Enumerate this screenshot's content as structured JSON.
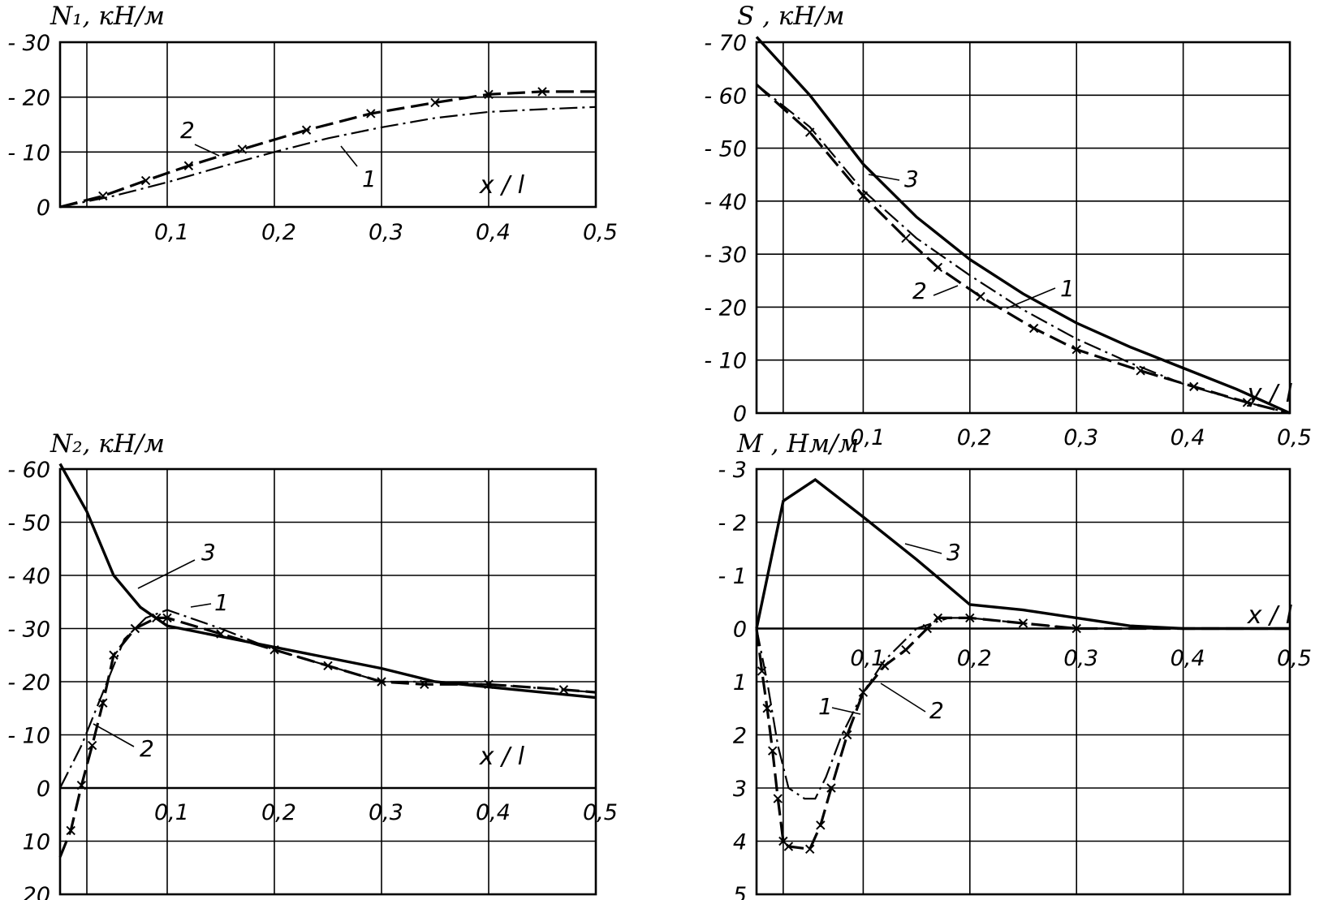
{
  "chart_data": [
    {
      "id": "n1",
      "type": "line",
      "title": "N₁, кН/м",
      "xlabel": "x / l",
      "xlim": [
        0,
        0.5
      ],
      "ylim": [
        0,
        -30
      ],
      "x_ticks": [
        "0,1",
        "0,2",
        "0,3",
        "0,4",
        "0,5"
      ],
      "y_ticks": [
        "0",
        "- 10",
        "- 20",
        "- 30"
      ],
      "series": [
        {
          "name": "1",
          "style": "dash-dot",
          "points": [
            [
              0,
              0
            ],
            [
              0.05,
              -2
            ],
            [
              0.1,
              -4.5
            ],
            [
              0.15,
              -7.3
            ],
            [
              0.2,
              -10
            ],
            [
              0.25,
              -12.5
            ],
            [
              0.3,
              -14.5
            ],
            [
              0.35,
              -16.2
            ],
            [
              0.4,
              -17.3
            ],
            [
              0.45,
              -17.8
            ],
            [
              0.5,
              -18.2
            ]
          ]
        },
        {
          "name": "2",
          "style": "dash-cross",
          "points": [
            [
              0,
              0
            ],
            [
              0.04,
              -2
            ],
            [
              0.08,
              -4.8
            ],
            [
              0.12,
              -7.5
            ],
            [
              0.17,
              -10.5
            ],
            [
              0.23,
              -14
            ],
            [
              0.29,
              -17
            ],
            [
              0.35,
              -19
            ],
            [
              0.4,
              -20.5
            ],
            [
              0.45,
              -21
            ],
            [
              0.5,
              -21
            ]
          ]
        }
      ],
      "curve_labels": [
        "1",
        "2"
      ]
    },
    {
      "id": "s",
      "type": "line",
      "title": "S , кН/м",
      "xlabel": "y / l",
      "xlim": [
        0,
        0.5
      ],
      "ylim": [
        0,
        -70
      ],
      "x_ticks": [
        "0,1",
        "0,2",
        "0,3",
        "0,4",
        "0,5"
      ],
      "y_ticks": [
        "0",
        "- 10",
        "- 20",
        "- 30",
        "- 40",
        "- 50",
        "- 60",
        "- 70"
      ],
      "series": [
        {
          "name": "1",
          "style": "dash-dot",
          "points": [
            [
              0,
              -62
            ],
            [
              0.05,
              -54
            ],
            [
              0.1,
              -42
            ],
            [
              0.15,
              -33
            ],
            [
              0.2,
              -26
            ],
            [
              0.25,
              -19.5
            ],
            [
              0.3,
              -14
            ],
            [
              0.35,
              -9.5
            ],
            [
              0.4,
              -5.5
            ],
            [
              0.45,
              -2.5
            ],
            [
              0.5,
              0
            ]
          ]
        },
        {
          "name": "2",
          "style": "dash-cross",
          "points": [
            [
              0,
              -62
            ],
            [
              0.05,
              -53
            ],
            [
              0.1,
              -41
            ],
            [
              0.14,
              -33
            ],
            [
              0.17,
              -27.5
            ],
            [
              0.21,
              -22
            ],
            [
              0.26,
              -16
            ],
            [
              0.3,
              -12
            ],
            [
              0.36,
              -8
            ],
            [
              0.41,
              -5
            ],
            [
              0.46,
              -2
            ],
            [
              0.5,
              0
            ]
          ]
        },
        {
          "name": "3",
          "style": "solid",
          "points": [
            [
              0,
              -71
            ],
            [
              0.05,
              -60
            ],
            [
              0.1,
              -47
            ],
            [
              0.15,
              -37
            ],
            [
              0.2,
              -29
            ],
            [
              0.25,
              -22.5
            ],
            [
              0.3,
              -17
            ],
            [
              0.35,
              -12.5
            ],
            [
              0.4,
              -8.5
            ],
            [
              0.45,
              -4.5
            ],
            [
              0.5,
              0
            ]
          ]
        }
      ],
      "curve_labels": [
        "1",
        "2",
        "3"
      ]
    },
    {
      "id": "n2",
      "type": "line",
      "title": "N₂, кН/м",
      "xlabel": "x / l",
      "xlim": [
        0,
        0.5
      ],
      "ylim": [
        20,
        -60
      ],
      "x_ticks": [
        "0,1",
        "0,2",
        "0,3",
        "0,4",
        "0,5"
      ],
      "y_ticks": [
        "20",
        "10",
        "0",
        "- 10",
        "- 20",
        "- 30",
        "- 40",
        "- 50",
        "- 60"
      ],
      "series": [
        {
          "name": "1",
          "style": "dash-dot",
          "points": [
            [
              0,
              0
            ],
            [
              0.02,
              -8
            ],
            [
              0.04,
              -18
            ],
            [
              0.06,
              -28
            ],
            [
              0.08,
              -32
            ],
            [
              0.1,
              -33.5
            ],
            [
              0.15,
              -30
            ],
            [
              0.2,
              -26
            ],
            [
              0.25,
              -23
            ],
            [
              0.3,
              -20
            ],
            [
              0.35,
              -20
            ],
            [
              0.4,
              -19.5
            ],
            [
              0.5,
              -18
            ]
          ]
        },
        {
          "name": "2",
          "style": "dash-cross",
          "points": [
            [
              0,
              13
            ],
            [
              0.01,
              8
            ],
            [
              0.02,
              -0.5
            ],
            [
              0.03,
              -8
            ],
            [
              0.04,
              -16
            ],
            [
              0.05,
              -25
            ],
            [
              0.07,
              -30
            ],
            [
              0.09,
              -32
            ],
            [
              0.1,
              -32
            ],
            [
              0.15,
              -29
            ],
            [
              0.2,
              -26
            ],
            [
              0.25,
              -23
            ],
            [
              0.3,
              -20
            ],
            [
              0.34,
              -19.5
            ],
            [
              0.4,
              -19.5
            ],
            [
              0.47,
              -18.5
            ],
            [
              0.5,
              -18
            ]
          ]
        },
        {
          "name": "3",
          "style": "solid",
          "points": [
            [
              0,
              -61
            ],
            [
              0.025,
              -52
            ],
            [
              0.05,
              -40
            ],
            [
              0.075,
              -34
            ],
            [
              0.1,
              -30.5
            ],
            [
              0.15,
              -28.5
            ],
            [
              0.2,
              -26.5
            ],
            [
              0.25,
              -24.5
            ],
            [
              0.3,
              -22.5
            ],
            [
              0.35,
              -20
            ],
            [
              0.4,
              -19
            ],
            [
              0.45,
              -18
            ],
            [
              0.5,
              -17
            ]
          ]
        }
      ],
      "curve_labels": [
        "1",
        "2",
        "3"
      ]
    },
    {
      "id": "m",
      "type": "line",
      "title": "M , Нм/м",
      "xlabel": "x / l",
      "xlim": [
        0,
        0.5
      ],
      "ylim": [
        5,
        -3
      ],
      "x_ticks": [
        "0,1",
        "0,2",
        "0,3",
        "0,4",
        "0,5"
      ],
      "y_ticks": [
        "5",
        "4",
        "3",
        "2",
        "1",
        "0",
        "- 1",
        "- 2",
        "- 3"
      ],
      "series": [
        {
          "name": "1",
          "style": "dash-dot",
          "points": [
            [
              0,
              0
            ],
            [
              0.01,
              1
            ],
            [
              0.02,
              2.2
            ],
            [
              0.03,
              3
            ],
            [
              0.045,
              3.2
            ],
            [
              0.055,
              3.2
            ],
            [
              0.065,
              2.8
            ],
            [
              0.08,
              2
            ],
            [
              0.1,
              1.2
            ],
            [
              0.12,
              0.6
            ],
            [
              0.15,
              0
            ],
            [
              0.18,
              -0.2
            ],
            [
              0.2,
              -0.2
            ],
            [
              0.25,
              -0.1
            ],
            [
              0.3,
              0
            ],
            [
              0.5,
              0
            ]
          ]
        },
        {
          "name": "2",
          "style": "dash-cross",
          "points": [
            [
              0,
              0
            ],
            [
              0.005,
              0.8
            ],
            [
              0.01,
              1.5
            ],
            [
              0.015,
              2.3
            ],
            [
              0.02,
              3.2
            ],
            [
              0.025,
              4
            ],
            [
              0.03,
              4.1
            ],
            [
              0.05,
              4.15
            ],
            [
              0.06,
              3.7
            ],
            [
              0.07,
              3
            ],
            [
              0.085,
              2
            ],
            [
              0.1,
              1.2
            ],
            [
              0.12,
              0.7
            ],
            [
              0.14,
              0.4
            ],
            [
              0.16,
              0
            ],
            [
              0.17,
              -0.2
            ],
            [
              0.2,
              -0.2
            ],
            [
              0.25,
              -0.1
            ],
            [
              0.3,
              0
            ],
            [
              0.5,
              0
            ]
          ]
        },
        {
          "name": "3",
          "style": "solid",
          "points": [
            [
              0,
              0
            ],
            [
              0.025,
              -2.4
            ],
            [
              0.055,
              -2.8
            ],
            [
              0.1,
              -2.1
            ],
            [
              0.15,
              -1.3
            ],
            [
              0.2,
              -0.45
            ],
            [
              0.25,
              -0.35
            ],
            [
              0.3,
              -0.2
            ],
            [
              0.35,
              -0.05
            ],
            [
              0.4,
              0
            ],
            [
              0.5,
              0
            ]
          ]
        }
      ],
      "curve_labels": [
        "1",
        "2",
        "3"
      ]
    }
  ]
}
